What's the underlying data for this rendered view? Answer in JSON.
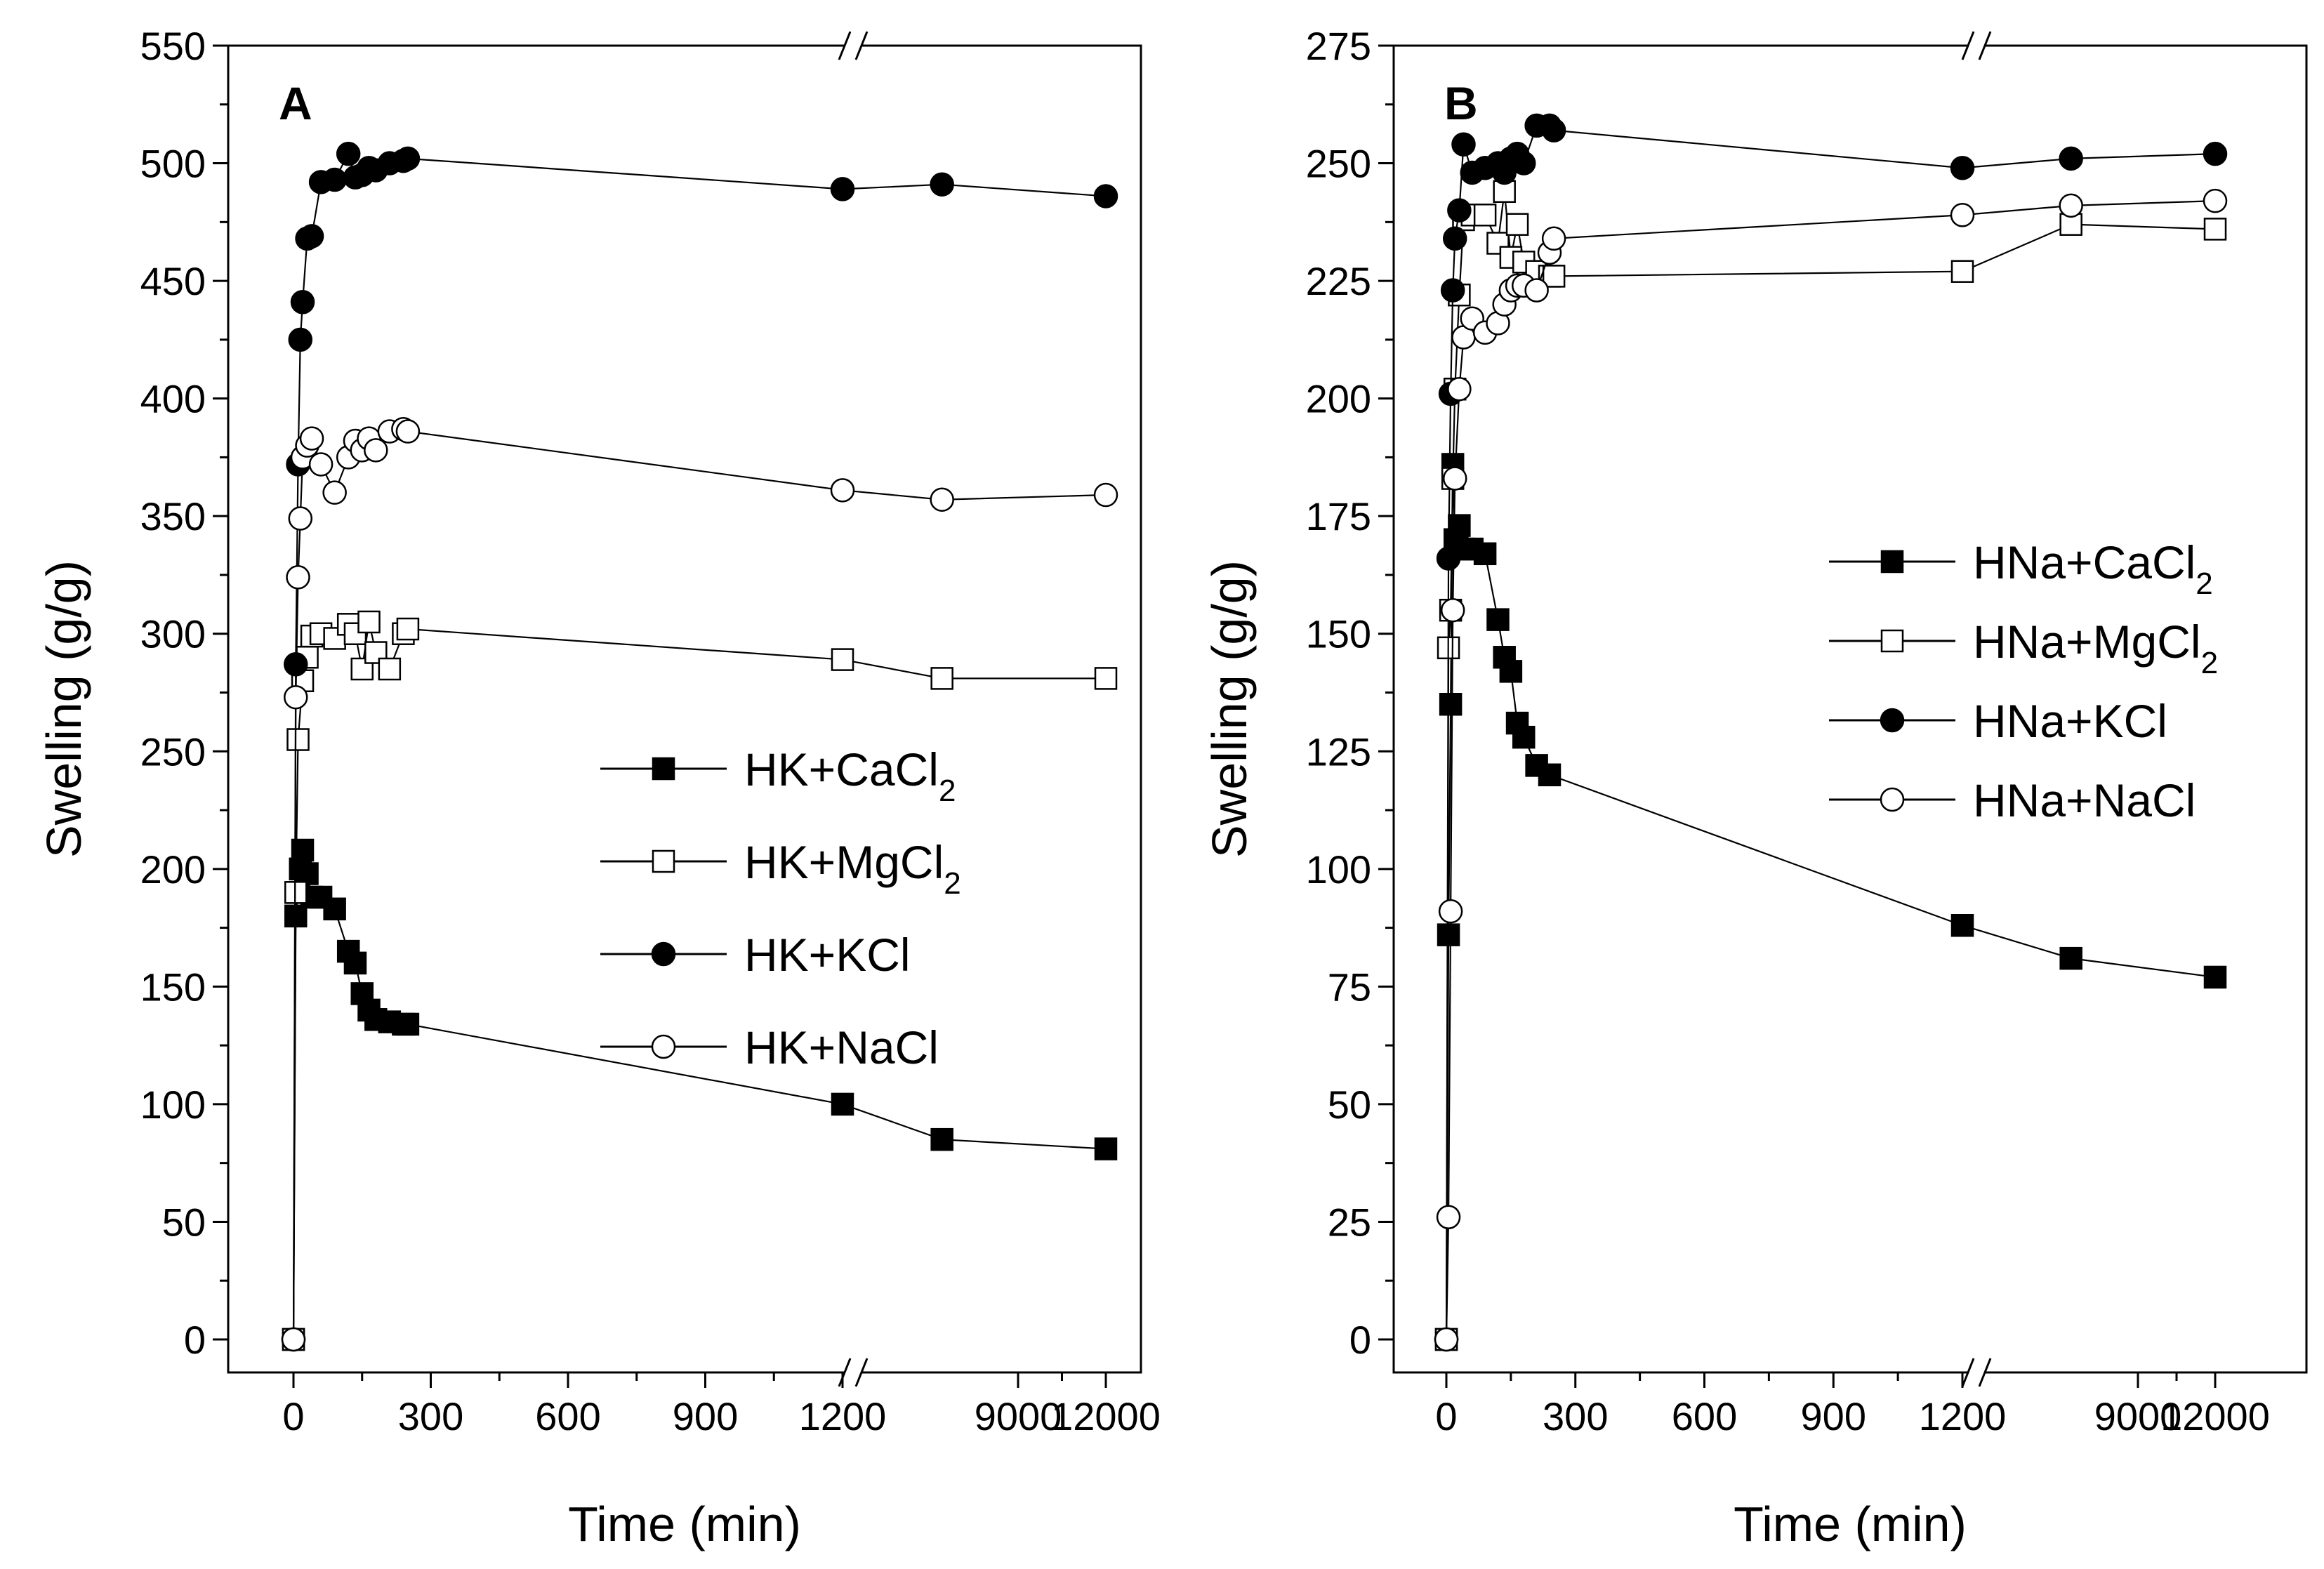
{
  "chart_data": [
    {
      "type": "line",
      "panel_label": "A",
      "xlabel": "Time (min)",
      "ylabel": "Swelling (g/g)",
      "ylim": [
        0,
        550
      ],
      "yticks": [
        "0",
        "50",
        "100",
        "150",
        "200",
        "250",
        "300",
        "350",
        "400",
        "450",
        "500",
        "550"
      ],
      "xticks": [
        "0",
        "300",
        "600",
        "900",
        "1200",
        "9000",
        "12000"
      ],
      "x_axis_broken": true,
      "x_segment1_range": [
        0,
        1200
      ],
      "x_segment2_range": [
        5000,
        12000
      ],
      "legend_position": "middle-right",
      "series": [
        {
          "name": "HK+CaCl",
          "name_sub": "2",
          "marker": "filled-square",
          "x": [
            0,
            5,
            10,
            15,
            20,
            30,
            40,
            60,
            90,
            120,
            135,
            150,
            165,
            180,
            210,
            240,
            250,
            1200,
            6400,
            12000
          ],
          "y": [
            0,
            180,
            190,
            200,
            208,
            198,
            188,
            188,
            183,
            165,
            160,
            147,
            140,
            136,
            135,
            134,
            134,
            100,
            85,
            81
          ]
        },
        {
          "name": "HK+MgCl",
          "name_sub": "2",
          "marker": "open-square",
          "x": [
            0,
            5,
            10,
            20,
            30,
            40,
            60,
            90,
            120,
            135,
            150,
            165,
            180,
            210,
            240,
            250,
            1200,
            6400,
            12000
          ],
          "y": [
            0,
            190,
            255,
            280,
            290,
            299,
            300,
            298,
            304,
            300,
            285,
            305,
            292,
            285,
            300,
            302,
            289,
            281,
            281
          ]
        },
        {
          "name": "HK+KCl",
          "name_sub": "",
          "marker": "filled-circle",
          "x": [
            0,
            5,
            10,
            15,
            20,
            30,
            40,
            60,
            90,
            120,
            135,
            150,
            165,
            180,
            210,
            240,
            250,
            1200,
            6400,
            12000
          ],
          "y": [
            0,
            287,
            372,
            425,
            441,
            468,
            469,
            492,
            493,
            504,
            494,
            495,
            498,
            497,
            500,
            501,
            502,
            489,
            491,
            486
          ]
        },
        {
          "name": "HK+NaCl",
          "name_sub": "",
          "marker": "open-circle",
          "x": [
            0,
            5,
            10,
            15,
            20,
            30,
            40,
            60,
            90,
            120,
            135,
            150,
            165,
            180,
            210,
            240,
            250,
            1200,
            6400,
            12000
          ],
          "y": [
            0,
            273,
            324,
            349,
            375,
            380,
            383,
            372,
            360,
            375,
            382,
            378,
            383,
            378,
            386,
            387,
            386,
            361,
            357,
            359
          ]
        }
      ]
    },
    {
      "type": "line",
      "panel_label": "B",
      "xlabel": "Time (min)",
      "ylabel": "Swelling (g/g)",
      "ylim": [
        0,
        275
      ],
      "yticks": [
        "0",
        "25",
        "50",
        "75",
        "100",
        "125",
        "150",
        "175",
        "200",
        "225",
        "250",
        "275"
      ],
      "xticks": [
        "0",
        "300",
        "600",
        "900",
        "1200",
        "9000",
        "12000"
      ],
      "x_axis_broken": true,
      "x_segment1_range": [
        0,
        1200
      ],
      "x_segment2_range": [
        5000,
        12000
      ],
      "legend_position": "middle-right",
      "series": [
        {
          "name": "HNa+CaCl",
          "name_sub": "2",
          "marker": "filled-square",
          "x": [
            0,
            5,
            10,
            15,
            20,
            25,
            30,
            40,
            60,
            90,
            120,
            135,
            150,
            165,
            180,
            210,
            240,
            1200,
            6400,
            12000
          ],
          "y": [
            0,
            86,
            135,
            186,
            170,
            169,
            173,
            168,
            168,
            167,
            153,
            145,
            142,
            131,
            128,
            122,
            120,
            88,
            81,
            77
          ]
        },
        {
          "name": "HNa+MgCl",
          "name_sub": "2",
          "marker": "open-square",
          "x": [
            0,
            5,
            10,
            15,
            20,
            30,
            40,
            60,
            90,
            120,
            135,
            150,
            165,
            180,
            210,
            240,
            250,
            1200,
            6400,
            12000
          ],
          "y": [
            0,
            147,
            155,
            183,
            202,
            222,
            238,
            239,
            239,
            233,
            244,
            230,
            237,
            229,
            227,
            226,
            226,
            227,
            237,
            236
          ]
        },
        {
          "name": "HNa+KCl",
          "name_sub": "",
          "marker": "filled-circle",
          "x": [
            0,
            5,
            10,
            15,
            20,
            30,
            40,
            60,
            90,
            120,
            135,
            150,
            165,
            180,
            210,
            240,
            250,
            1200,
            6400,
            12000
          ],
          "y": [
            0,
            166,
            201,
            223,
            234,
            240,
            254,
            248,
            249,
            250,
            248,
            251,
            252,
            250,
            258,
            258,
            257,
            249,
            251,
            252
          ]
        },
        {
          "name": "HNa+NaCl",
          "name_sub": "",
          "marker": "open-circle",
          "x": [
            0,
            5,
            10,
            15,
            20,
            30,
            40,
            60,
            90,
            120,
            135,
            150,
            165,
            180,
            210,
            240,
            250,
            1200,
            6400,
            12000
          ],
          "y": [
            0,
            26,
            91,
            155,
            183,
            202,
            213,
            217,
            214,
            216,
            220,
            223,
            224,
            224,
            223,
            231,
            234,
            239,
            241,
            242
          ]
        }
      ]
    }
  ]
}
